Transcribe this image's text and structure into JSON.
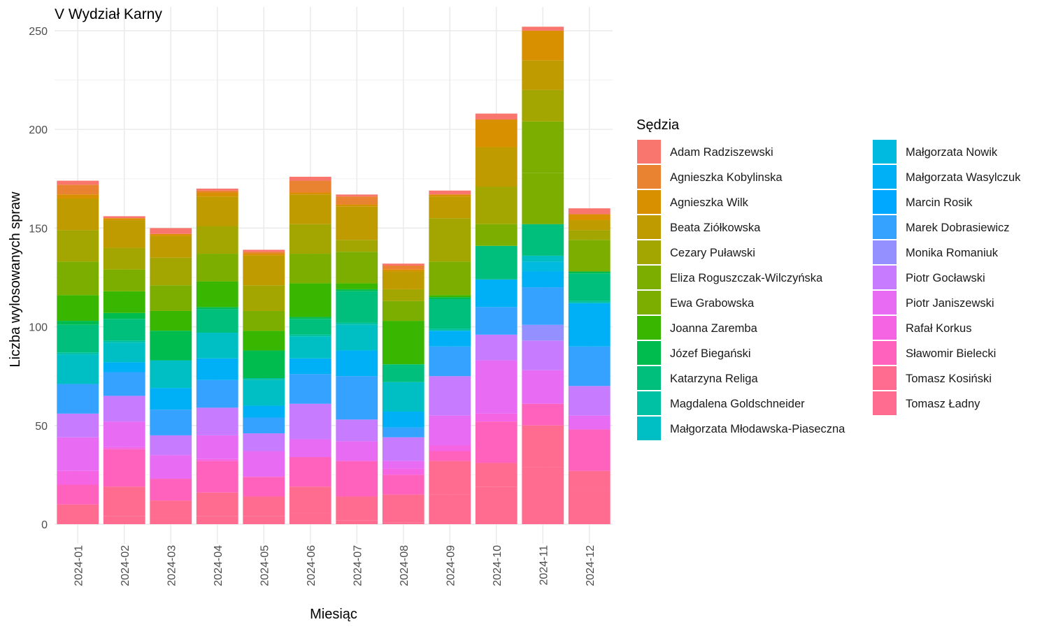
{
  "chart_data": {
    "type": "bar",
    "stacked": true,
    "title": "V Wydział Karny",
    "xlabel": "Miesiąc",
    "ylabel": "Liczba wylosowanych spraw",
    "ylim": [
      0,
      262
    ],
    "yticks": [
      0,
      50,
      100,
      150,
      200,
      250
    ],
    "grid": true,
    "legend_title": "Sędzia",
    "legend_position": "right",
    "categories": [
      "2024-01",
      "2024-02",
      "2024-03",
      "2024-04",
      "2024-05",
      "2024-06",
      "2024-07",
      "2024-08",
      "2024-09",
      "2024-10",
      "2024-11",
      "2024-12"
    ],
    "series": [
      {
        "name": "Adam Radziszewski",
        "color": "#F8766D",
        "values": [
          2,
          1,
          3,
          1,
          1,
          2,
          1,
          1,
          2,
          3,
          2,
          3
        ]
      },
      {
        "name": "Agnieszka Kobylinska",
        "color": "#EA8331",
        "values": [
          5,
          0,
          0,
          1,
          1,
          6,
          4,
          2,
          0,
          0,
          0,
          0
        ]
      },
      {
        "name": "Agnieszka Wilk",
        "color": "#D89000",
        "values": [
          2,
          1,
          1,
          2,
          1,
          1,
          1,
          1,
          1,
          14,
          15,
          3
        ]
      },
      {
        "name": "Beata Ziółkowska",
        "color": "#C09B00",
        "values": [
          16,
          14,
          11,
          15,
          15,
          15,
          17,
          9,
          11,
          20,
          15,
          5
        ]
      },
      {
        "name": "Cezary Puławski",
        "color": "#A3A500",
        "values": [
          16,
          11,
          14,
          14,
          13,
          15,
          6,
          6,
          22,
          19,
          16,
          5
        ]
      },
      {
        "name": "Eliza Roguszczak-Wilczyńska",
        "color": "#7CAE00",
        "values": [
          0,
          0,
          0,
          0,
          0,
          0,
          0,
          0,
          0,
          0,
          26,
          0
        ]
      },
      {
        "name": "Ewa Grabowska",
        "color": "#7CAE00",
        "values": [
          17,
          11,
          13,
          14,
          10,
          15,
          16,
          10,
          17,
          11,
          26,
          16
        ]
      },
      {
        "name": "Joanna Zaremba",
        "color": "#39B600",
        "values": [
          13,
          11,
          10,
          13,
          10,
          17,
          3,
          22,
          1,
          0,
          0,
          0
        ]
      },
      {
        "name": "Józef Biegański",
        "color": "#00BB4E",
        "values": [
          2,
          3,
          15,
          1,
          14,
          1,
          1,
          0,
          1,
          0,
          0,
          1
        ]
      },
      {
        "name": "Katarzyna Religa",
        "color": "#00BF7D",
        "values": [
          14,
          11,
          0,
          12,
          0,
          8,
          16,
          9,
          15,
          17,
          16,
          14
        ]
      },
      {
        "name": "Magdalena Goldschneider",
        "color": "#00C1A3",
        "values": [
          1,
          1,
          0,
          0,
          1,
          1,
          1,
          0,
          1,
          0,
          0,
          1
        ]
      },
      {
        "name": "Małgorzata Młodawska-Piaseczna",
        "color": "#00BFC4",
        "values": [
          15,
          10,
          14,
          13,
          13,
          11,
          13,
          15,
          0,
          0,
          3,
          0
        ]
      },
      {
        "name": "Małgorzata Nowik",
        "color": "#00BAE0",
        "values": [
          0,
          0,
          0,
          0,
          0,
          0,
          0,
          0,
          0,
          0,
          5,
          0
        ]
      },
      {
        "name": "Małgorzata Wasylczuk",
        "color": "#00B0F6",
        "values": [
          0,
          5,
          11,
          11,
          6,
          8,
          13,
          8,
          8,
          14,
          8,
          22
        ]
      },
      {
        "name": "Marcin Rosik",
        "color": "#00A9FF",
        "values": [
          0,
          0,
          0,
          0,
          0,
          0,
          0,
          0,
          0,
          0,
          0,
          0
        ]
      },
      {
        "name": "Marek Dobrasiewicz",
        "color": "#35A2FF",
        "values": [
          15,
          12,
          13,
          14,
          8,
          15,
          22,
          5,
          15,
          14,
          19,
          20
        ]
      },
      {
        "name": "Monika Romaniuk",
        "color": "#9590FF",
        "values": [
          0,
          0,
          0,
          0,
          0,
          0,
          0,
          0,
          0,
          0,
          8,
          0
        ]
      },
      {
        "name": "Piotr Gocławski",
        "color": "#C77CFF",
        "values": [
          12,
          13,
          10,
          14,
          9,
          18,
          11,
          12,
          20,
          13,
          15,
          15
        ]
      },
      {
        "name": "Piotr Janiszewski",
        "color": "#E76BF3",
        "values": [
          17,
          13,
          12,
          12,
          13,
          9,
          10,
          4,
          15,
          27,
          17,
          7
        ]
      },
      {
        "name": "Rafał Korkus",
        "color": "#F564E3",
        "values": [
          7,
          1,
          0,
          1,
          0,
          0,
          0,
          3,
          3,
          4,
          0,
          0
        ]
      },
      {
        "name": "Sławomir Bielecki",
        "color": "#FF62BC",
        "values": [
          10,
          19,
          11,
          16,
          10,
          15,
          18,
          10,
          5,
          21,
          11,
          21
        ]
      },
      {
        "name": "Tomasz Kosiński",
        "color": "#FF6C90",
        "values": [
          10,
          15,
          9,
          12,
          10,
          13,
          12,
          14,
          17,
          12,
          21,
          10
        ]
      },
      {
        "name": "Tomasz Ładny",
        "color": "#FF6C90",
        "values": [
          0,
          4,
          3,
          4,
          4,
          6,
          2,
          1,
          15,
          19,
          29,
          17
        ]
      }
    ]
  }
}
